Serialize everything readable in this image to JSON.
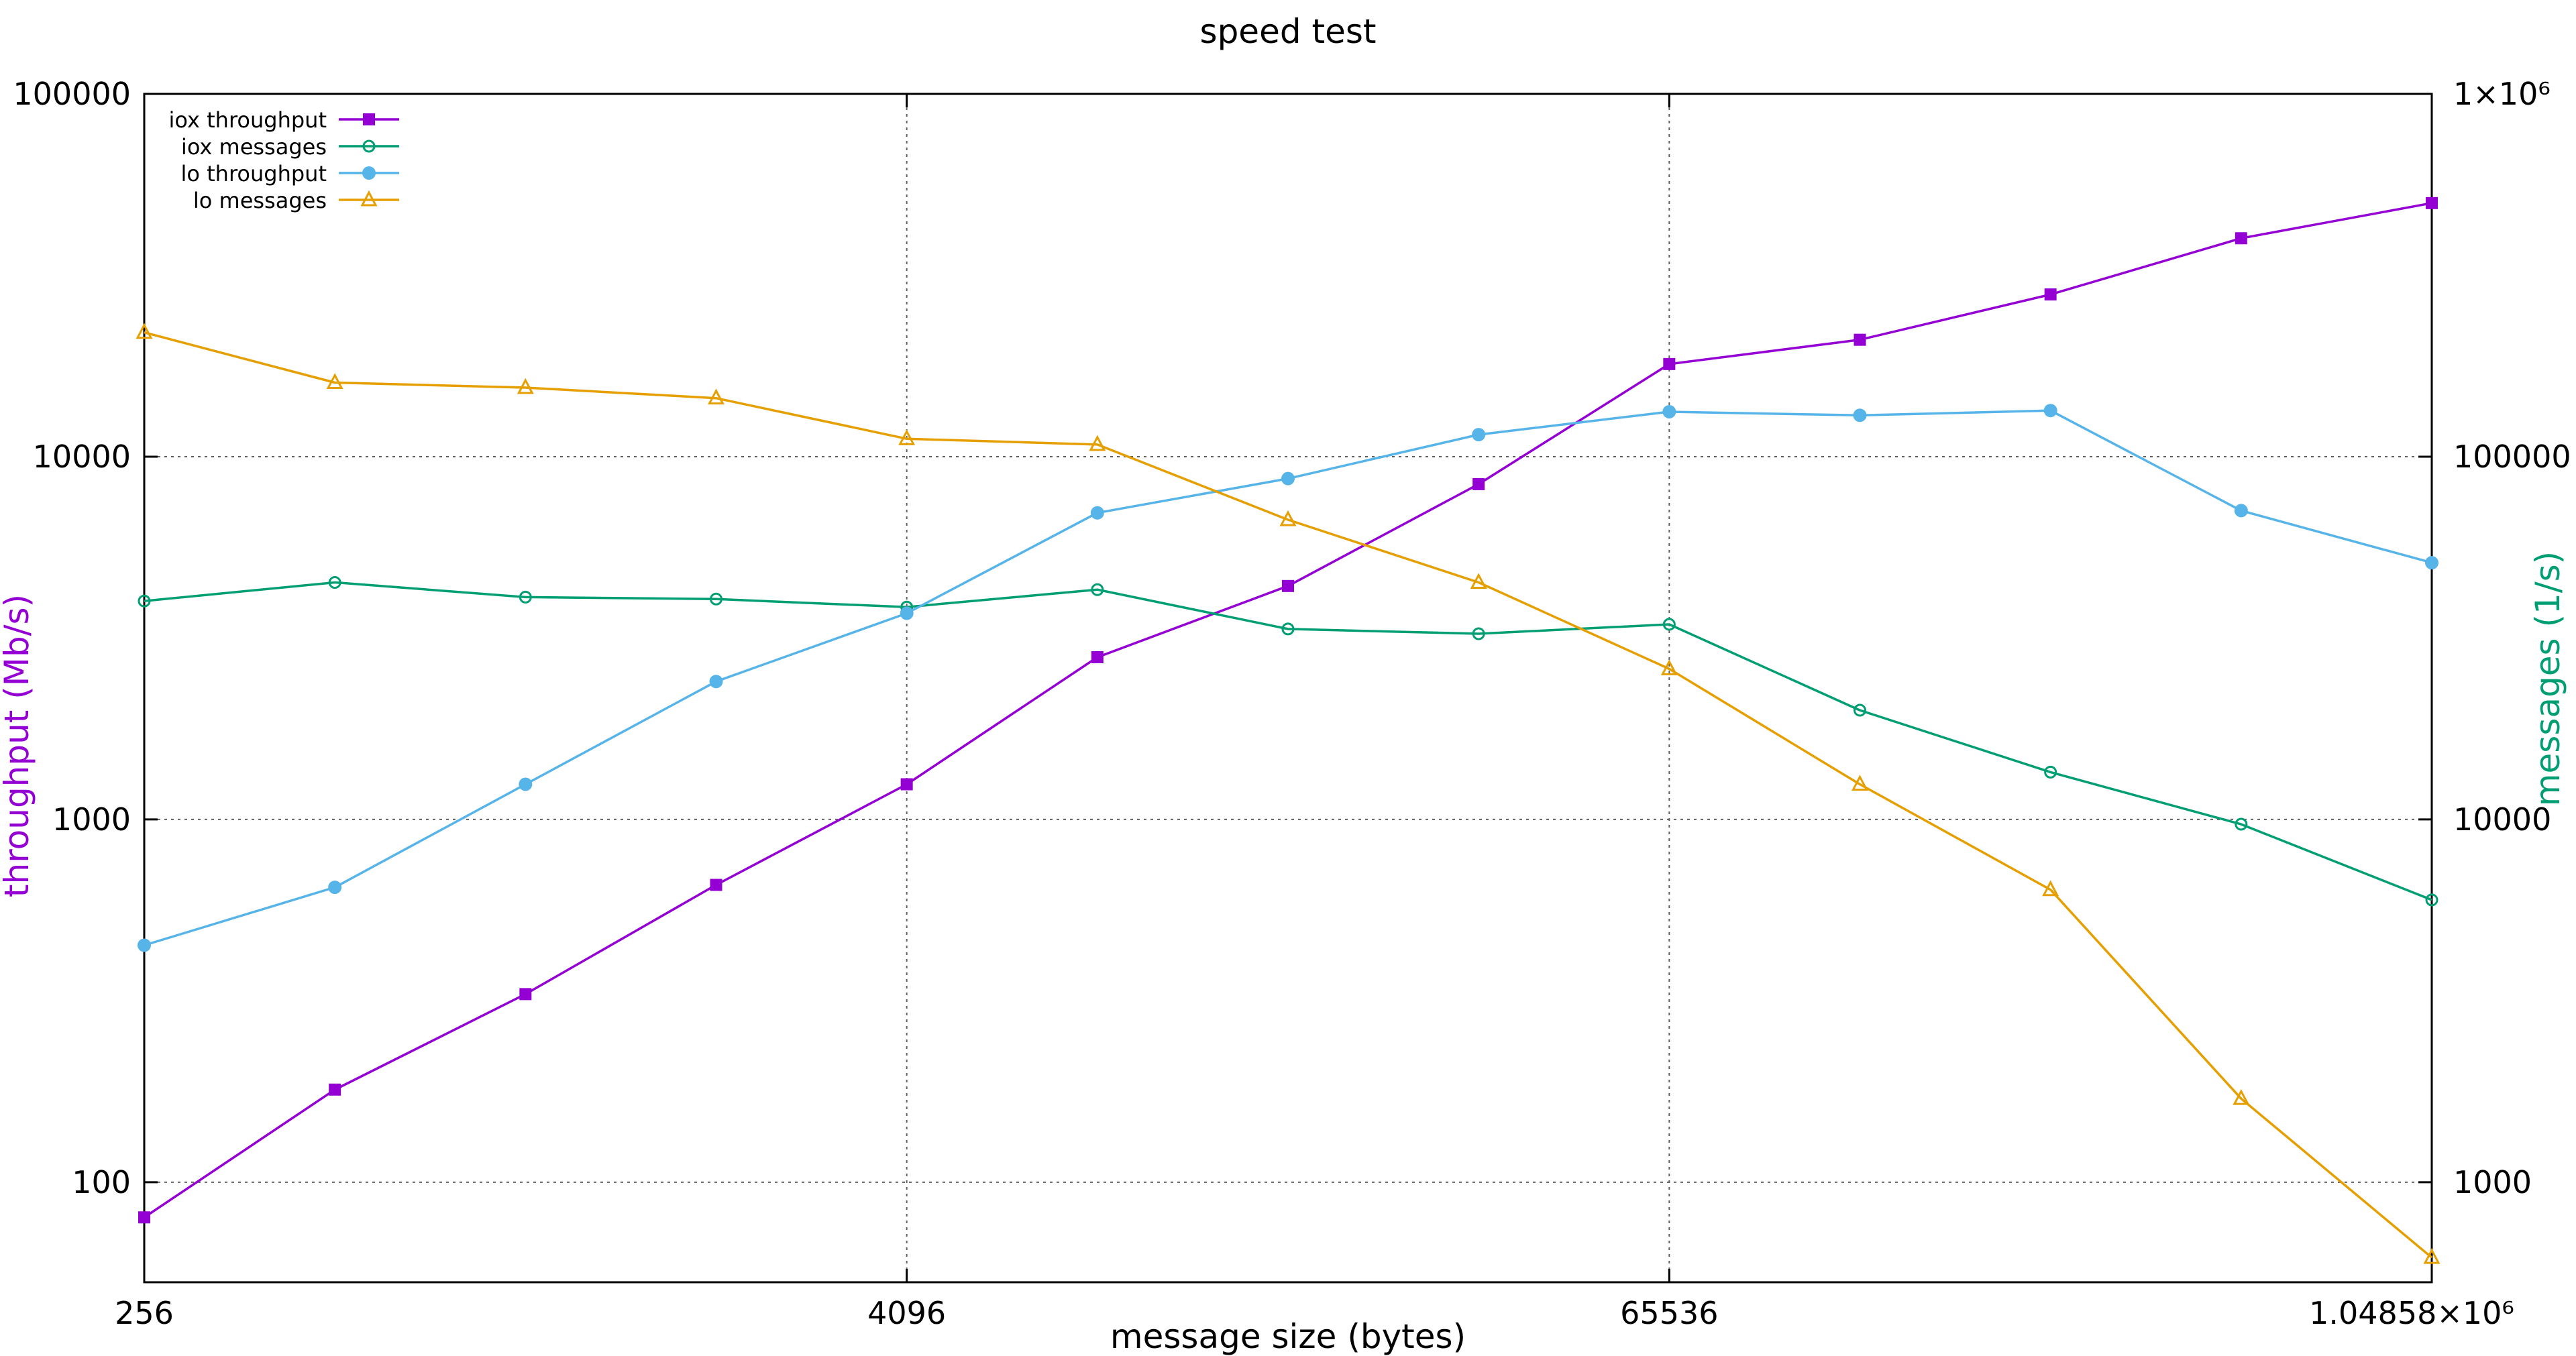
{
  "chart_data": {
    "type": "line",
    "title": "speed test",
    "xlabel": "message size (bytes)",
    "ylabel": "throughput (Mb/s)",
    "y2label": "messages (1/s)",
    "x_scale": "log2",
    "y_scale": "log10",
    "y2_scale": "log10",
    "xlim": [
      256,
      1048576
    ],
    "ylim": [
      53,
      100000
    ],
    "y2lim": [
      530,
      1000000
    ],
    "x_ticks": [
      {
        "value": 256,
        "label": "256"
      },
      {
        "value": 4096,
        "label": "4096"
      },
      {
        "value": 65536,
        "label": "65536"
      },
      {
        "value": 1048576,
        "label": "1.04858×10⁶"
      }
    ],
    "y_ticks": [
      {
        "value": 100,
        "label": "100"
      },
      {
        "value": 1000,
        "label": "1000"
      },
      {
        "value": 10000,
        "label": "10000"
      },
      {
        "value": 100000,
        "label": "100000"
      }
    ],
    "y2_ticks": [
      {
        "value": 1000,
        "label": "1000"
      },
      {
        "value": 10000,
        "label": "10000"
      },
      {
        "value": 100000,
        "label": "100000"
      },
      {
        "value": 1000000,
        "label": "1×10⁶"
      }
    ],
    "grid": true,
    "legend_position": "top-left",
    "x": [
      256,
      512,
      1024,
      2048,
      4096,
      8192,
      16384,
      32768,
      65536,
      131072,
      262144,
      524288,
      1048576
    ],
    "series": [
      {
        "name": "iox throughput",
        "axis": "left",
        "color": "#9400d3",
        "marker": "square-filled",
        "values": [
          80,
          180,
          330,
          660,
          1250,
          2800,
          4400,
          8400,
          18000,
          21000,
          28000,
          40000,
          50000
        ]
      },
      {
        "name": "iox messages",
        "axis": "right",
        "color": "#009e73",
        "marker": "circle-open",
        "values": [
          40000,
          45000,
          41000,
          40500,
          38500,
          43000,
          33500,
          32500,
          34500,
          20000,
          13500,
          9700,
          6000
        ]
      },
      {
        "name": "lo throughput",
        "axis": "left",
        "color": "#56b4e9",
        "marker": "circle-filled",
        "values": [
          450,
          650,
          1250,
          2400,
          3700,
          7000,
          8700,
          11500,
          13300,
          13000,
          13400,
          7100,
          5100
        ]
      },
      {
        "name": "lo messages",
        "axis": "right",
        "color": "#e69f00",
        "marker": "triangle-open",
        "values": [
          220000,
          160000,
          155000,
          145000,
          112000,
          108000,
          67000,
          45000,
          26000,
          12500,
          6400,
          1700,
          620
        ]
      }
    ]
  }
}
